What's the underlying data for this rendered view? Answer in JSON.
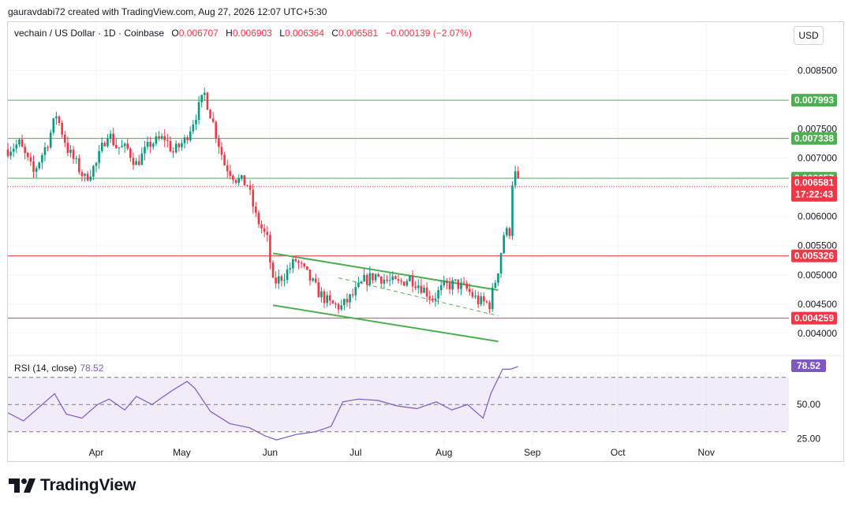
{
  "credit": "gauravdabi72 created with TradingView.com, Aug 27, 2026 12:07 UTC+5:30",
  "legend": {
    "symbol": "vechain / US Dollar · 1D · Coinbase",
    "o_label": "O",
    "o": "0.006707",
    "h_label": "H",
    "h": "0.006903",
    "l_label": "L",
    "l": "0.006364",
    "c_label": "C",
    "c": "0.006581",
    "change": "−0.000139 (−2.07%)"
  },
  "currency_button": "USD",
  "rsi_legend": {
    "label": "RSI (14, close)",
    "value": "78.52"
  },
  "brand": {
    "name": "TradingView",
    "logo_icon": "tradingview-logo-icon"
  },
  "colors": {
    "up": "#089981",
    "down": "#f23645",
    "support": "#4caf50",
    "resistance": "#f23645",
    "rsi": "#7e57c2",
    "rsi_band": "#ede7f6"
  },
  "chart_data": {
    "type": "candlestick",
    "price_axis": {
      "ticks": [
        "0.008500",
        "0.007500",
        "0.007000",
        "0.006000",
        "0.005500",
        "0.005000",
        "0.004500",
        "0.004000"
      ],
      "range": [
        0.0037,
        0.0089
      ]
    },
    "x_axis": {
      "ticks": [
        "Apr",
        "May",
        "Jun",
        "Jul",
        "Aug",
        "Sep",
        "Oct",
        "Nov"
      ]
    },
    "horizontal_lines": [
      {
        "value": 0.007993,
        "label": "0.007993",
        "color": "#4caf50"
      },
      {
        "value": 0.007338,
        "label": "0.007338",
        "color": "#4caf50"
      },
      {
        "value": 0.006657,
        "label": "0.006657",
        "color": "#4caf50"
      },
      {
        "value": 0.005326,
        "label": "0.005326",
        "color": "#f23645"
      },
      {
        "value": 0.004259,
        "label": "0.004259",
        "color": "#f23645"
      }
    ],
    "last_price": {
      "value": 0.006581,
      "label": "0.006581",
      "countdown": "17:22:43"
    },
    "channel": {
      "upper": [
        [
          "2026-06-02",
          0.00537
        ],
        [
          "2026-08-20",
          0.00474
        ]
      ],
      "lower": [
        [
          "2026-06-02",
          0.00448
        ],
        [
          "2026-08-20",
          0.00386
        ]
      ],
      "mid": [
        [
          "2026-06-25",
          0.00495
        ],
        [
          "2026-08-20",
          0.0043
        ]
      ]
    },
    "price_path": [
      [
        "2026-03-01",
        0.00715
      ],
      [
        "2026-03-05",
        0.00725
      ],
      [
        "2026-03-10",
        0.00675
      ],
      [
        "2026-03-15",
        0.00728
      ],
      [
        "2026-03-18",
        0.00775
      ],
      [
        "2026-03-22",
        0.00715
      ],
      [
        "2026-03-25",
        0.0069
      ],
      [
        "2026-03-28",
        0.00665
      ],
      [
        "2026-04-01",
        0.0069
      ],
      [
        "2026-04-05",
        0.00745
      ],
      [
        "2026-04-08",
        0.0072
      ],
      [
        "2026-04-12",
        0.00715
      ],
      [
        "2026-04-15",
        0.0069
      ],
      [
        "2026-04-20",
        0.00725
      ],
      [
        "2026-04-25",
        0.00735
      ],
      [
        "2026-04-28",
        0.0071
      ],
      [
        "2026-05-02",
        0.0073
      ],
      [
        "2026-05-06",
        0.00775
      ],
      [
        "2026-05-09",
        0.0081
      ],
      [
        "2026-05-12",
        0.0076
      ],
      [
        "2026-05-16",
        0.0069
      ],
      [
        "2026-05-20",
        0.00665
      ],
      [
        "2026-05-24",
        0.00655
      ],
      [
        "2026-05-27",
        0.006
      ],
      [
        "2026-05-31",
        0.0056
      ],
      [
        "2026-06-02",
        0.00485
      ],
      [
        "2026-06-06",
        0.005
      ],
      [
        "2026-06-10",
        0.00525
      ],
      [
        "2026-06-14",
        0.005
      ],
      [
        "2026-06-18",
        0.0047
      ],
      [
        "2026-06-22",
        0.0045
      ],
      [
        "2026-06-26",
        0.00445
      ],
      [
        "2026-06-30",
        0.00465
      ],
      [
        "2026-07-04",
        0.0049
      ],
      [
        "2026-07-08",
        0.005
      ],
      [
        "2026-07-12",
        0.0049
      ],
      [
        "2026-07-16",
        0.00485
      ],
      [
        "2026-07-20",
        0.00495
      ],
      [
        "2026-07-24",
        0.0048
      ],
      [
        "2026-07-28",
        0.0046
      ],
      [
        "2026-08-01",
        0.0048
      ],
      [
        "2026-08-05",
        0.00485
      ],
      [
        "2026-08-09",
        0.00475
      ],
      [
        "2026-08-13",
        0.00455
      ],
      [
        "2026-08-17",
        0.0045
      ],
      [
        "2026-08-20",
        0.0051
      ],
      [
        "2026-08-22",
        0.0057
      ],
      [
        "2026-08-24",
        0.00575
      ],
      [
        "2026-08-25",
        0.0066
      ],
      [
        "2026-08-26",
        0.00672
      ],
      [
        "2026-08-27",
        0.00658
      ]
    ],
    "rsi": {
      "label": "RSI (14, close)",
      "value": 78.52,
      "ticks": [
        "50.00",
        "25.00"
      ],
      "bands": [
        30,
        70
      ],
      "range": [
        20,
        82
      ],
      "path": [
        [
          0,
          44
        ],
        [
          8,
          38
        ],
        [
          16,
          48
        ],
        [
          24,
          58
        ],
        [
          30,
          43
        ],
        [
          38,
          40
        ],
        [
          46,
          50
        ],
        [
          52,
          54
        ],
        [
          60,
          46
        ],
        [
          66,
          56
        ],
        [
          74,
          50
        ],
        [
          84,
          60
        ],
        [
          92,
          67
        ],
        [
          96,
          62
        ],
        [
          104,
          45
        ],
        [
          114,
          36
        ],
        [
          124,
          33
        ],
        [
          132,
          27
        ],
        [
          138,
          24
        ],
        [
          148,
          28
        ],
        [
          158,
          30
        ],
        [
          166,
          34
        ],
        [
          172,
          52
        ],
        [
          180,
          54
        ],
        [
          190,
          53
        ],
        [
          200,
          49
        ],
        [
          210,
          47
        ],
        [
          220,
          52
        ],
        [
          228,
          46
        ],
        [
          236,
          50
        ],
        [
          244,
          40
        ],
        [
          248,
          58
        ],
        [
          254,
          76
        ],
        [
          258,
          76
        ],
        [
          262,
          78
        ]
      ]
    }
  }
}
